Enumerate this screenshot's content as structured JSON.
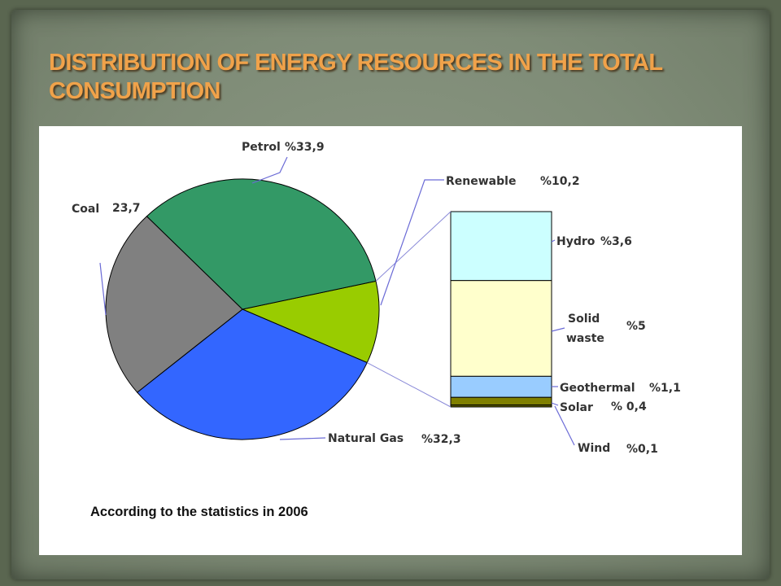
{
  "slide": {
    "title": "DISTRIBUTION OF ENERGY RESOURCES IN THE TOTAL CONSUMPTION",
    "caption": "According to the statistics in 2006"
  },
  "chart_data": [
    {
      "type": "pie",
      "slices": [
        {
          "label": "Petrol",
          "value_text": "%33,9",
          "value": 33.9,
          "color": "#339966"
        },
        {
          "label": "Renewable",
          "value_text": "%10,2",
          "value": 10.2,
          "color": "#99cc00"
        },
        {
          "label": "Natural Gas",
          "value_text": "%32,3",
          "value": 32.3,
          "color": "#3366ff"
        },
        {
          "label": "Coal",
          "value_text": "23,7",
          "value": 23.7,
          "color": "#808080"
        }
      ]
    },
    {
      "type": "bar",
      "stacked": true,
      "parent": "Renewable",
      "segments": [
        {
          "label": "Hydro",
          "value_text": "%3,6",
          "value": 3.6,
          "color": "#ccffff"
        },
        {
          "label": "Solid waste",
          "value_text": "%5",
          "value": 5,
          "color": "#ffffcc"
        },
        {
          "label": "Geothermal",
          "value_text": "%1,1",
          "value": 1.1,
          "color": "#99ccff"
        },
        {
          "label": "Solar",
          "value_text": "% 0,4",
          "value": 0.4,
          "color": "#808000"
        },
        {
          "label": "Wind",
          "value_text": "%0,1",
          "value": 0.1,
          "color": "#666600"
        }
      ]
    }
  ]
}
